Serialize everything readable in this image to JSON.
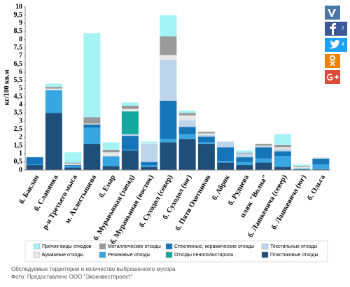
{
  "chart_data": {
    "type": "stacked_bar",
    "y_label": "кг/100 кв.м",
    "categories": [
      "б. Баклан",
      "б. Славянка",
      "р-н Третьего мыса",
      "м. Ахлестышева",
      "б. Емар",
      "б. Муравьиная (запад)",
      "б. Муравьиная (восток)",
      "б. Суходол (север)",
      "б. Суходол (юг)",
      "б. Пяти Охотников",
      "б. Аброк",
      "б. Руднева",
      "пляж \"Волна\"",
      "б. Лашкевича (север)",
      "б. Лашкевича (юг)",
      "б. Ольга"
    ],
    "series": [
      {
        "name": "Пластиковые отходы",
        "color": "#1f4e79",
        "values": [
          0.3,
          3.5,
          0.15,
          1.6,
          0.25,
          1.2,
          0.2,
          1.7,
          1.9,
          1.6,
          0.45,
          0.3,
          0.45,
          0.2,
          0.05,
          0.05
        ]
      },
      {
        "name": "Резиновые отходы",
        "color": "#38a6e0",
        "values": [
          0.05,
          1.4,
          0.1,
          1.0,
          0.6,
          0.05,
          0.1,
          0.2,
          0.3,
          0.1,
          0.1,
          0.2,
          0.25,
          0.65,
          0.05,
          0.3
        ]
      },
      {
        "name": "Стеклянные, керамические отходы",
        "color": "#1575b8",
        "values": [
          0.45,
          0,
          0.05,
          0.2,
          0,
          0.85,
          0.2,
          2.35,
          0.45,
          0.35,
          0.85,
          0.3,
          0.7,
          0.3,
          0,
          0.35
        ]
      },
      {
        "name": "Текстильные отходы",
        "color": "#bdd4ea",
        "values": [
          0,
          0,
          0,
          0,
          0,
          0.1,
          1.1,
          2.5,
          0.4,
          0.1,
          0.35,
          0.2,
          0.05,
          0.15,
          0,
          0.05
        ]
      },
      {
        "name": "Отходы пенополистирола",
        "color": "#13a89e",
        "values": [
          0,
          0,
          0,
          0,
          0,
          1.4,
          0,
          0,
          0,
          0,
          0,
          0,
          0,
          0,
          0,
          0
        ]
      },
      {
        "name": "Бумажные отходы",
        "color": "#e8e8e8",
        "values": [
          0,
          0.1,
          0.1,
          0.05,
          0.25,
          0.15,
          0.05,
          0.3,
          0.3,
          0.1,
          0,
          0,
          0.05,
          0.1,
          0.1,
          0.05
        ]
      },
      {
        "name": "Металлические отходы",
        "color": "#9a9a9a",
        "values": [
          0,
          0.1,
          0.05,
          0.4,
          0.15,
          0.2,
          0,
          1.15,
          0.15,
          0.1,
          0,
          0.05,
          0.1,
          0.15,
          0.05,
          0
        ]
      },
      {
        "name": "Прочие виды отходов",
        "color": "#a6f3f5",
        "values": [
          0,
          0.2,
          0.65,
          5.15,
          0.45,
          0.2,
          0.1,
          1.3,
          0.15,
          0,
          0,
          0.15,
          0,
          0.65,
          0.1,
          0
        ]
      }
    ],
    "ylim": [
      0,
      10
    ],
    "yticks": [
      0,
      {
        "value": 0.5,
        "label": "0,5"
      },
      1,
      {
        "value": 1.5,
        "label": "1,5"
      },
      2,
      {
        "value": 2.5,
        "label": "2,5"
      },
      3,
      {
        "value": 3.5,
        "label": "3,5"
      },
      4,
      {
        "value": 4.5,
        "label": "4,5"
      },
      5,
      {
        "value": 5.5,
        "label": "5,5"
      },
      6,
      {
        "value": 6.5,
        "label": "6,5"
      },
      7,
      {
        "value": 7.5,
        "label": "7,5"
      },
      8,
      {
        "value": 8.5,
        "label": "8,5"
      },
      9,
      {
        "value": 9.5,
        "label": "9,5"
      },
      10
    ]
  },
  "caption": {
    "line1": "Обследуемые территории и количество выброшенного мусора",
    "line2": "Фото: Предоставлено ООО \"Экоинвестпроект\""
  },
  "social": {
    "facebook_count": "2",
    "twitter_count": "4"
  }
}
